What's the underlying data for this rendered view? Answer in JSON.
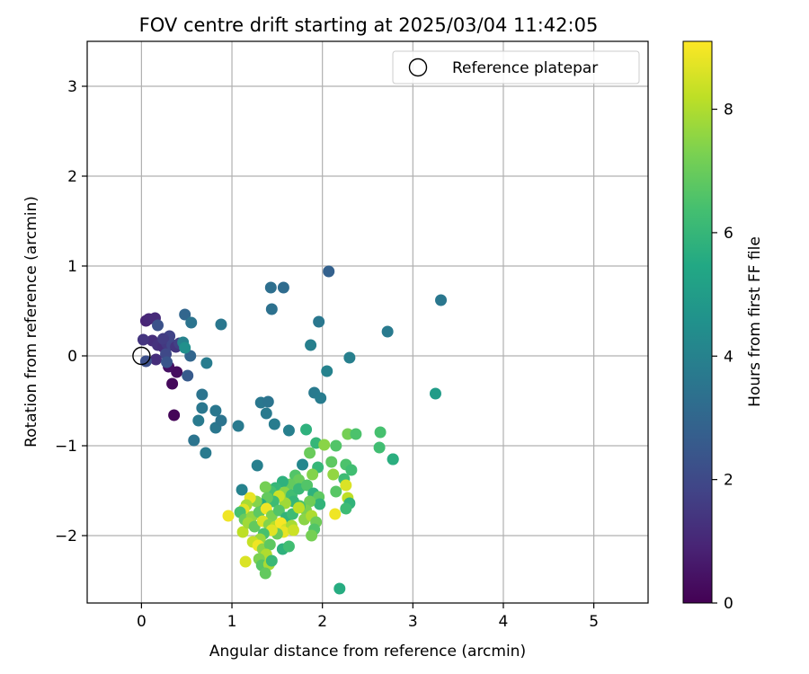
{
  "chart_data": {
    "type": "scatter",
    "title": "FOV centre drift starting at 2025/03/04 11:42:05",
    "xlabel": "Angular distance from reference (arcmin)",
    "ylabel": "Rotation from reference (arcmin)",
    "xlim": [
      -0.6,
      5.6
    ],
    "ylim": [
      -2.75,
      3.5
    ],
    "xticks": [
      0,
      1,
      2,
      3,
      4,
      5
    ],
    "yticks": [
      -2,
      -1,
      0,
      1,
      2,
      3
    ],
    "grid": true,
    "legend": {
      "placement": "upper right",
      "entries": [
        "Reference platepar"
      ]
    },
    "reference_point": {
      "x": 0.0,
      "y": 0.0,
      "label": "Reference platepar"
    },
    "colorbar": {
      "label": "Hours from first FF file",
      "colormap": "viridis",
      "range": [
        0,
        9.1
      ],
      "ticks": [
        0,
        2,
        4,
        6,
        8
      ]
    },
    "points": [
      {
        "x": 0.36,
        "y": -0.66,
        "c": 0.1
      },
      {
        "x": 0.34,
        "y": -0.31,
        "c": 0.2
      },
      {
        "x": 0.39,
        "y": -0.18,
        "c": 0.3
      },
      {
        "x": 0.3,
        "y": -0.12,
        "c": 0.4
      },
      {
        "x": 0.05,
        "y": 0.39,
        "c": 0.9
      },
      {
        "x": 0.08,
        "y": 0.41,
        "c": 1.0
      },
      {
        "x": 0.15,
        "y": 0.42,
        "c": 1.1
      },
      {
        "x": 0.12,
        "y": 0.17,
        "c": 1.2
      },
      {
        "x": 0.02,
        "y": 0.18,
        "c": 1.4
      },
      {
        "x": 0.18,
        "y": 0.12,
        "c": 1.3
      },
      {
        "x": 0.24,
        "y": 0.1,
        "c": 1.2
      },
      {
        "x": 0.28,
        "y": 0.14,
        "c": 1.5
      },
      {
        "x": 0.31,
        "y": 0.22,
        "c": 1.8
      },
      {
        "x": 0.24,
        "y": 0.19,
        "c": 1.6
      },
      {
        "x": 0.34,
        "y": 0.12,
        "c": 1.9
      },
      {
        "x": 0.38,
        "y": 0.1,
        "c": 1.4
      },
      {
        "x": 0.42,
        "y": 0.14,
        "c": 1.7
      },
      {
        "x": 0.27,
        "y": 0.02,
        "c": 2.0
      },
      {
        "x": 0.16,
        "y": -0.04,
        "c": 1.2
      },
      {
        "x": 0.05,
        "y": -0.06,
        "c": 2.2
      },
      {
        "x": 0.18,
        "y": 0.34,
        "c": 2.3
      },
      {
        "x": 0.28,
        "y": -0.07,
        "c": 2.4
      },
      {
        "x": 0.51,
        "y": -0.22,
        "c": 2.6
      },
      {
        "x": 0.54,
        "y": 0.0,
        "c": 3.0
      },
      {
        "x": 0.48,
        "y": 0.46,
        "c": 3.0
      },
      {
        "x": 0.55,
        "y": 0.37,
        "c": 3.5
      },
      {
        "x": 0.46,
        "y": 0.15,
        "c": 4.0
      },
      {
        "x": 0.48,
        "y": 0.09,
        "c": 4.5
      },
      {
        "x": 0.88,
        "y": 0.35,
        "c": 3.6
      },
      {
        "x": 0.72,
        "y": -0.08,
        "c": 3.8
      },
      {
        "x": 0.67,
        "y": -0.43,
        "c": 3.5
      },
      {
        "x": 0.63,
        "y": -0.72,
        "c": 3.7
      },
      {
        "x": 0.67,
        "y": -0.58,
        "c": 3.6
      },
      {
        "x": 0.58,
        "y": -0.94,
        "c": 3.5
      },
      {
        "x": 0.71,
        "y": -1.08,
        "c": 3.7
      },
      {
        "x": 0.82,
        "y": -0.61,
        "c": 3.6
      },
      {
        "x": 0.82,
        "y": -0.8,
        "c": 3.6
      },
      {
        "x": 0.88,
        "y": -0.72,
        "c": 3.5
      },
      {
        "x": 1.07,
        "y": -0.78,
        "c": 3.7
      },
      {
        "x": 1.43,
        "y": 0.76,
        "c": 3.3
      },
      {
        "x": 1.57,
        "y": 0.76,
        "c": 3.2
      },
      {
        "x": 1.44,
        "y": 0.52,
        "c": 3.4
      },
      {
        "x": 2.07,
        "y": 0.94,
        "c": 2.8
      },
      {
        "x": 1.96,
        "y": 0.38,
        "c": 3.6
      },
      {
        "x": 1.87,
        "y": 0.12,
        "c": 3.9
      },
      {
        "x": 2.72,
        "y": 0.27,
        "c": 3.7
      },
      {
        "x": 3.31,
        "y": 0.62,
        "c": 3.6
      },
      {
        "x": 2.3,
        "y": -0.02,
        "c": 3.9
      },
      {
        "x": 2.05,
        "y": -0.17,
        "c": 4.0
      },
      {
        "x": 1.91,
        "y": -0.41,
        "c": 3.7
      },
      {
        "x": 1.98,
        "y": -0.47,
        "c": 3.8
      },
      {
        "x": 1.32,
        "y": -0.52,
        "c": 3.6
      },
      {
        "x": 1.4,
        "y": -0.51,
        "c": 3.5
      },
      {
        "x": 1.38,
        "y": -0.64,
        "c": 3.7
      },
      {
        "x": 1.47,
        "y": -0.76,
        "c": 3.8
      },
      {
        "x": 1.63,
        "y": -0.83,
        "c": 3.9
      },
      {
        "x": 1.28,
        "y": -1.22,
        "c": 3.9
      },
      {
        "x": 1.11,
        "y": -1.49,
        "c": 4.0
      },
      {
        "x": 1.78,
        "y": -1.21,
        "c": 4.2
      },
      {
        "x": 3.25,
        "y": -0.42,
        "c": 5.0
      },
      {
        "x": 1.82,
        "y": -0.82,
        "c": 5.8
      },
      {
        "x": 1.93,
        "y": -0.97,
        "c": 6.0
      },
      {
        "x": 2.02,
        "y": -0.99,
        "c": 7.5
      },
      {
        "x": 2.15,
        "y": -1.0,
        "c": 6.6
      },
      {
        "x": 1.86,
        "y": -1.08,
        "c": 7.0
      },
      {
        "x": 2.28,
        "y": -0.87,
        "c": 7.2
      },
      {
        "x": 2.37,
        "y": -0.87,
        "c": 6.5
      },
      {
        "x": 2.64,
        "y": -0.85,
        "c": 6.4
      },
      {
        "x": 2.63,
        "y": -1.02,
        "c": 6.3
      },
      {
        "x": 2.78,
        "y": -1.15,
        "c": 5.5
      },
      {
        "x": 2.78,
        "y": -1.15,
        "c": 5.7
      },
      {
        "x": 2.26,
        "y": -1.21,
        "c": 6.5
      },
      {
        "x": 2.32,
        "y": -1.27,
        "c": 6.3
      },
      {
        "x": 2.1,
        "y": -1.18,
        "c": 6.8
      },
      {
        "x": 1.95,
        "y": -1.24,
        "c": 6.0
      },
      {
        "x": 1.89,
        "y": -1.32,
        "c": 7.4
      },
      {
        "x": 2.12,
        "y": -1.32,
        "c": 7.6
      },
      {
        "x": 2.24,
        "y": -1.37,
        "c": 6.2
      },
      {
        "x": 2.26,
        "y": -1.44,
        "c": 8.6
      },
      {
        "x": 2.15,
        "y": -1.51,
        "c": 6.7
      },
      {
        "x": 2.28,
        "y": -1.58,
        "c": 8.2
      },
      {
        "x": 2.3,
        "y": -1.64,
        "c": 5.9
      },
      {
        "x": 2.26,
        "y": -1.7,
        "c": 6.2
      },
      {
        "x": 2.14,
        "y": -1.76,
        "c": 8.9
      },
      {
        "x": 1.7,
        "y": -1.33,
        "c": 6.6
      },
      {
        "x": 1.74,
        "y": -1.38,
        "c": 7.0
      },
      {
        "x": 1.64,
        "y": -1.43,
        "c": 6.9
      },
      {
        "x": 1.56,
        "y": -1.4,
        "c": 5.8
      },
      {
        "x": 1.48,
        "y": -1.47,
        "c": 6.0
      },
      {
        "x": 1.43,
        "y": -1.51,
        "c": 6.4
      },
      {
        "x": 1.37,
        "y": -1.46,
        "c": 7.2
      },
      {
        "x": 1.58,
        "y": -1.52,
        "c": 7.5
      },
      {
        "x": 1.66,
        "y": -1.55,
        "c": 6.3
      },
      {
        "x": 1.74,
        "y": -1.48,
        "c": 6.1
      },
      {
        "x": 1.83,
        "y": -1.44,
        "c": 6.6
      },
      {
        "x": 1.9,
        "y": -1.53,
        "c": 5.8
      },
      {
        "x": 1.96,
        "y": -1.57,
        "c": 6.8
      },
      {
        "x": 1.97,
        "y": -1.65,
        "c": 5.9
      },
      {
        "x": 1.86,
        "y": -1.62,
        "c": 7.1
      },
      {
        "x": 1.82,
        "y": -1.72,
        "c": 7.3
      },
      {
        "x": 1.75,
        "y": -1.67,
        "c": 6.5
      },
      {
        "x": 1.68,
        "y": -1.62,
        "c": 6.0
      },
      {
        "x": 1.59,
        "y": -1.64,
        "c": 7.8
      },
      {
        "x": 1.52,
        "y": -1.56,
        "c": 8.4
      },
      {
        "x": 1.46,
        "y": -1.62,
        "c": 6.2
      },
      {
        "x": 1.39,
        "y": -1.58,
        "c": 6.9
      },
      {
        "x": 1.32,
        "y": -1.65,
        "c": 5.6
      },
      {
        "x": 1.27,
        "y": -1.62,
        "c": 7.4
      },
      {
        "x": 1.2,
        "y": -1.58,
        "c": 8.8
      },
      {
        "x": 1.16,
        "y": -1.66,
        "c": 7.9
      },
      {
        "x": 1.13,
        "y": -1.71,
        "c": 8.7
      },
      {
        "x": 1.09,
        "y": -1.74,
        "c": 6.4
      },
      {
        "x": 1.14,
        "y": -1.82,
        "c": 7.0
      },
      {
        "x": 1.22,
        "y": -1.79,
        "c": 7.6
      },
      {
        "x": 1.3,
        "y": -1.74,
        "c": 6.8
      },
      {
        "x": 1.38,
        "y": -1.7,
        "c": 8.9
      },
      {
        "x": 1.44,
        "y": -1.78,
        "c": 7.3
      },
      {
        "x": 1.52,
        "y": -1.72,
        "c": 6.6
      },
      {
        "x": 1.6,
        "y": -1.8,
        "c": 5.9
      },
      {
        "x": 1.67,
        "y": -1.76,
        "c": 6.2
      },
      {
        "x": 1.74,
        "y": -1.69,
        "c": 8.2
      },
      {
        "x": 1.8,
        "y": -1.82,
        "c": 7.5
      },
      {
        "x": 1.88,
        "y": -1.78,
        "c": 8.0
      },
      {
        "x": 1.93,
        "y": -1.85,
        "c": 7.1
      },
      {
        "x": 1.91,
        "y": -1.93,
        "c": 6.6
      },
      {
        "x": 1.88,
        "y": -2.0,
        "c": 7.2
      },
      {
        "x": 0.96,
        "y": -1.78,
        "c": 8.9
      },
      {
        "x": 1.12,
        "y": -1.96,
        "c": 8.2
      },
      {
        "x": 1.18,
        "y": -1.86,
        "c": 7.8
      },
      {
        "x": 1.25,
        "y": -1.9,
        "c": 6.9
      },
      {
        "x": 1.34,
        "y": -1.84,
        "c": 8.6
      },
      {
        "x": 1.41,
        "y": -1.88,
        "c": 7.4
      },
      {
        "x": 1.48,
        "y": -1.9,
        "c": 8.1
      },
      {
        "x": 1.54,
        "y": -1.86,
        "c": 9.0
      },
      {
        "x": 1.6,
        "y": -1.93,
        "c": 8.5
      },
      {
        "x": 1.66,
        "y": -1.89,
        "c": 7.9
      },
      {
        "x": 1.57,
        "y": -1.96,
        "c": 8.8
      },
      {
        "x": 1.5,
        "y": -1.98,
        "c": 7.0
      },
      {
        "x": 1.44,
        "y": -1.94,
        "c": 8.7
      },
      {
        "x": 1.35,
        "y": -1.98,
        "c": 6.4
      },
      {
        "x": 1.31,
        "y": -2.04,
        "c": 7.7
      },
      {
        "x": 1.23,
        "y": -2.07,
        "c": 8.3
      },
      {
        "x": 1.29,
        "y": -2.11,
        "c": 8.9
      },
      {
        "x": 1.34,
        "y": -2.15,
        "c": 7.5
      },
      {
        "x": 1.42,
        "y": -2.1,
        "c": 6.8
      },
      {
        "x": 1.38,
        "y": -2.21,
        "c": 8.0
      },
      {
        "x": 1.3,
        "y": -2.26,
        "c": 7.3
      },
      {
        "x": 1.33,
        "y": -2.33,
        "c": 6.7
      },
      {
        "x": 1.41,
        "y": -2.32,
        "c": 7.9
      },
      {
        "x": 1.44,
        "y": -2.28,
        "c": 6.1
      },
      {
        "x": 1.15,
        "y": -2.29,
        "c": 8.6
      },
      {
        "x": 1.37,
        "y": -2.42,
        "c": 6.9
      },
      {
        "x": 1.56,
        "y": -2.15,
        "c": 5.8
      },
      {
        "x": 1.63,
        "y": -2.12,
        "c": 6.3
      },
      {
        "x": 1.68,
        "y": -1.94,
        "c": 8.4
      },
      {
        "x": 2.19,
        "y": -2.59,
        "c": 5.6
      }
    ]
  }
}
